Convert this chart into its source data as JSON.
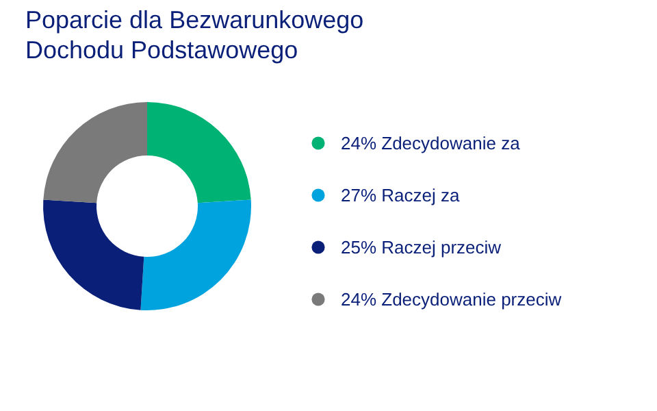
{
  "chart_data": {
    "type": "donut",
    "title": "Poparcie dla Bezwarunkowego Dochodu Podstawowego",
    "categories": [
      "Zdecydowanie za",
      "Raczej za",
      "Raczej przeciw",
      "Zdecydowanie przeciw"
    ],
    "values": [
      24,
      27,
      25,
      24
    ],
    "value_labels": [
      "24%",
      "27%",
      "25%",
      "24%"
    ],
    "colors": [
      "#00b274",
      "#00a3de",
      "#0a1f78",
      "#7a7a7a"
    ],
    "legend": "right"
  }
}
